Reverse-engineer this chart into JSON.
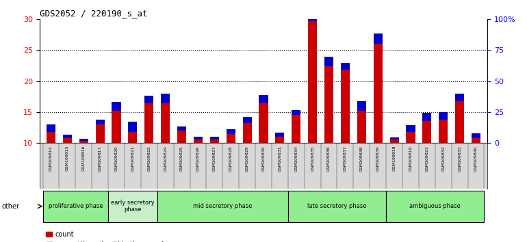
{
  "title": "GDS2052 / 220190_s_at",
  "samples": [
    "GSM109814",
    "GSM109815",
    "GSM109816",
    "GSM109817",
    "GSM109820",
    "GSM109821",
    "GSM109822",
    "GSM109824",
    "GSM109825",
    "GSM109826",
    "GSM109827",
    "GSM109828",
    "GSM109829",
    "GSM109830",
    "GSM109831",
    "GSM109834",
    "GSM109835",
    "GSM109836",
    "GSM109837",
    "GSM109838",
    "GSM109839",
    "GSM109818",
    "GSM109819",
    "GSM109823",
    "GSM109832",
    "GSM109833",
    "GSM109840"
  ],
  "count_values": [
    11.8,
    10.8,
    10.3,
    13.0,
    15.2,
    11.8,
    16.4,
    16.4,
    12.0,
    10.5,
    10.5,
    11.4,
    13.2,
    16.4,
    11.0,
    14.5,
    29.7,
    22.4,
    21.8,
    15.2,
    26.0,
    10.5,
    11.8,
    13.5,
    13.8,
    16.7,
    10.8
  ],
  "percentile_values": [
    6.0,
    2.5,
    1.5,
    4.0,
    7.0,
    8.0,
    6.0,
    8.0,
    3.0,
    2.5,
    2.5,
    4.0,
    5.0,
    6.5,
    3.0,
    4.0,
    7.0,
    7.5,
    6.0,
    7.5,
    8.5,
    2.0,
    5.5,
    7.0,
    6.0,
    6.5,
    3.5
  ],
  "phases": [
    {
      "label": "proliferative phase",
      "start": 0,
      "end": 4,
      "color": "#90EE90"
    },
    {
      "label": "early secretory\nphase",
      "start": 4,
      "end": 7,
      "color": "#c8f0c8"
    },
    {
      "label": "mid secretory phase",
      "start": 7,
      "end": 15,
      "color": "#90EE90"
    },
    {
      "label": "late secretory phase",
      "start": 15,
      "end": 21,
      "color": "#90EE90"
    },
    {
      "label": "ambiguous phase",
      "start": 21,
      "end": 27,
      "color": "#90EE90"
    }
  ],
  "bar_color": "#cc0000",
  "percentile_color": "#0000cc",
  "ylim_left": [
    10,
    30
  ],
  "ylim_right": [
    0,
    100
  ],
  "yticks_left": [
    10,
    15,
    20,
    25,
    30
  ],
  "yticks_right": [
    0,
    25,
    50,
    75,
    100
  ],
  "bar_width": 0.55,
  "baseline": 10,
  "plot_bg": "#ffffff",
  "sample_bg": "#d8d8d8"
}
